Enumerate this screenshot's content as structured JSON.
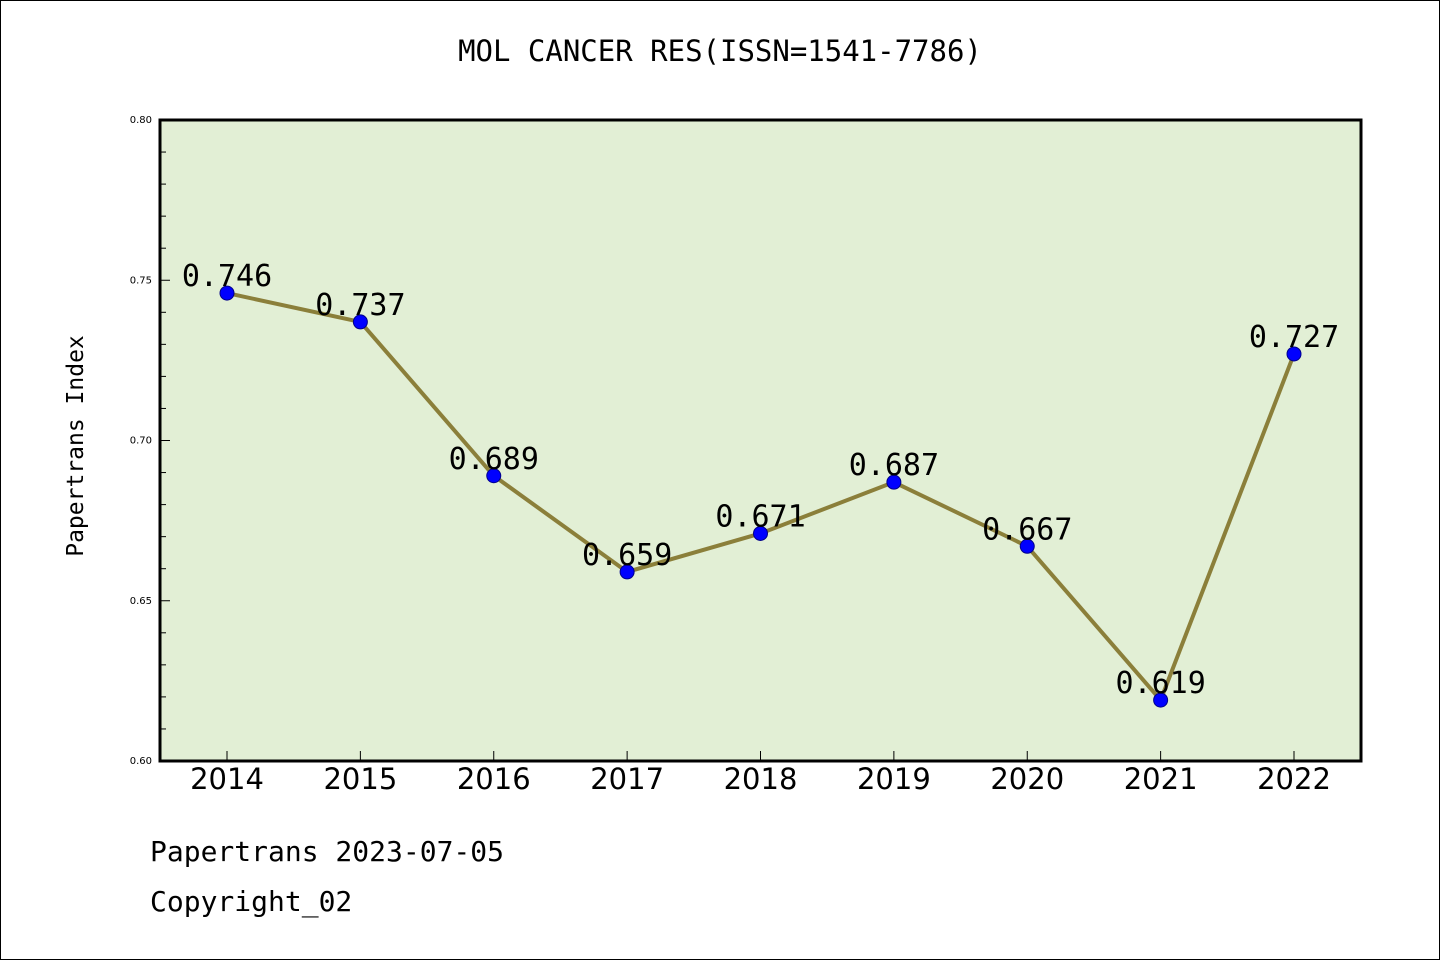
{
  "chart_data": {
    "type": "line",
    "title": "MOL CANCER RES(ISSN=1541-7786)",
    "ylabel": "Papertrans Index",
    "xlabel": "",
    "ylim": [
      0.6,
      0.8
    ],
    "yticks": [
      "0.60",
      "0.65",
      "0.70",
      "0.75",
      "0.80"
    ],
    "categories": [
      "2014",
      "2015",
      "2016",
      "2017",
      "2018",
      "2019",
      "2020",
      "2021",
      "2022"
    ],
    "values": [
      0.746,
      0.737,
      0.689,
      0.659,
      0.671,
      0.687,
      0.667,
      0.619,
      0.727
    ],
    "data_labels": [
      "0.746",
      "0.737",
      "0.689",
      "0.659",
      "0.671",
      "0.687",
      "0.667",
      "0.619",
      "0.727"
    ],
    "colors": {
      "background": "#e2efd5",
      "line": "#8b7f3a",
      "marker": "#0000ff"
    },
    "grid": false
  },
  "footer": {
    "line1": "Papertrans 2023-07-05",
    "line2": "Copyright_02"
  }
}
